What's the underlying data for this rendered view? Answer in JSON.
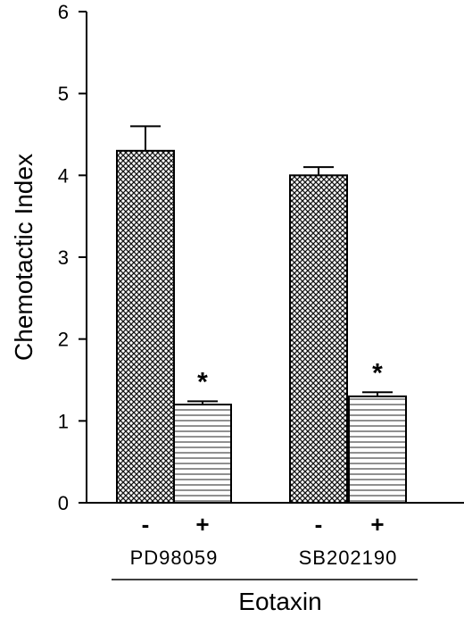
{
  "chart_data": {
    "type": "bar",
    "ylabel": "Chemotactic Index",
    "xlabel": "Eotaxin",
    "ylim": [
      0,
      6
    ],
    "yticks": [
      0,
      1,
      2,
      3,
      4,
      5,
      6
    ],
    "groups": [
      {
        "label": "PD98059",
        "bars": [
          {
            "condition": "-",
            "value": 4.3,
            "error": 0.3,
            "pattern": "crosshatch",
            "significance": ""
          },
          {
            "condition": "+",
            "value": 1.2,
            "error": 0.04,
            "pattern": "horizontal-lines",
            "significance": "*"
          }
        ]
      },
      {
        "label": "SB202190",
        "bars": [
          {
            "condition": "-",
            "value": 4.0,
            "error": 0.1,
            "pattern": "crosshatch",
            "significance": ""
          },
          {
            "condition": "+",
            "value": 1.3,
            "error": 0.05,
            "pattern": "horizontal-lines",
            "significance": "*"
          }
        ]
      }
    ]
  }
}
